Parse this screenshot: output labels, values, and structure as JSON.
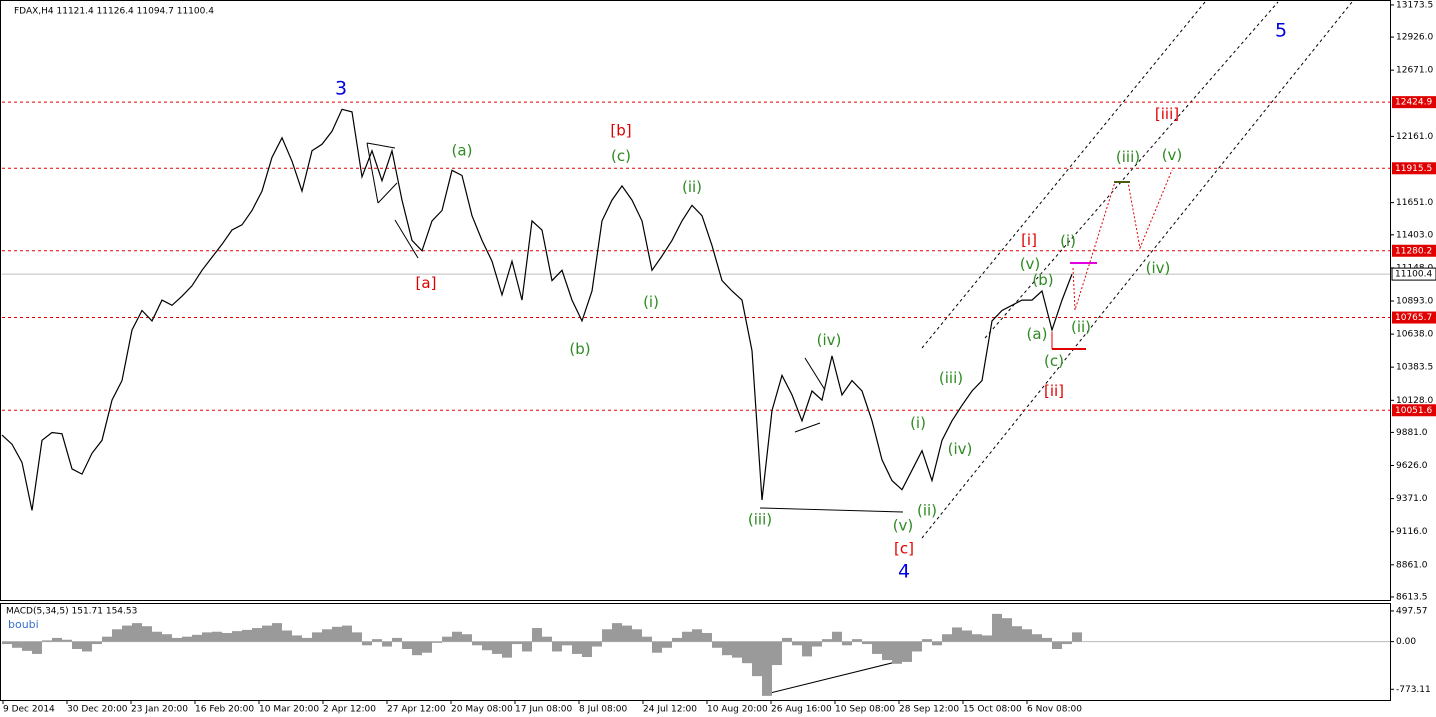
{
  "chart_data": [
    {
      "type": "line",
      "title": "FDAX,H4  11121.4 11126.4 11094.7 11100.4",
      "xlim": [
        0,
        1388
      ],
      "xticks": [
        {
          "value": 1,
          "label": "9 Dec 2014"
        },
        {
          "value": 65,
          "label": "30 Dec 20:00"
        },
        {
          "value": 129,
          "label": "23 Jan 20:00"
        },
        {
          "value": 193,
          "label": "16 Feb 20:00"
        },
        {
          "value": 257,
          "label": "10 Mar 20:00"
        },
        {
          "value": 321,
          "label": "2 Apr 12:00"
        },
        {
          "value": 385,
          "label": "27 Apr 12:00"
        },
        {
          "value": 449,
          "label": "20 May 08:00"
        },
        {
          "value": 513,
          "label": "17 Jun 08:00"
        },
        {
          "value": 577,
          "label": "8 Jul 08:00"
        },
        {
          "value": 641,
          "label": "24 Jul 12:00"
        },
        {
          "value": 705,
          "label": "10 Aug 20:00"
        },
        {
          "value": 769,
          "label": "26 Aug 16:00"
        },
        {
          "value": 833,
          "label": "10 Sep 08:00"
        },
        {
          "value": 897,
          "label": "28 Sep 12:00"
        },
        {
          "value": 961,
          "label": "15 Oct 08:00"
        },
        {
          "value": 1025,
          "label": "6 Nov 08:00"
        }
      ],
      "ylim": [
        8590,
        13204
      ],
      "yticks": [
        13173.5,
        {
          "value": 12926,
          "label": "12926.0"
        },
        {
          "value": 12671,
          "label": "12671.0"
        },
        {
          "value": 12161,
          "label": "12161.0"
        },
        {
          "value": 11651,
          "label": "11651.0"
        },
        {
          "value": 11403,
          "label": "11403.0"
        },
        {
          "value": 11148,
          "label": "11148.0"
        },
        {
          "value": 10893,
          "label": "10893.0"
        },
        {
          "value": 10638,
          "label": "10638.0"
        },
        10383.5,
        {
          "value": 10128,
          "label": "10128.0"
        },
        {
          "value": 9881,
          "label": "9881.0"
        },
        {
          "value": 9626,
          "label": "9626.0"
        },
        {
          "value": 9371,
          "label": "9371.0"
        },
        {
          "value": 9116,
          "label": "9116.0"
        },
        {
          "value": 8861,
          "label": "8861.0"
        },
        8613.5
      ],
      "series": [
        {
          "name": "FDAX",
          "color": "#000000",
          "x": [
            0,
            10,
            20,
            30,
            40,
            50,
            60,
            70,
            80,
            90,
            100,
            110,
            120,
            130,
            140,
            150,
            160,
            170,
            180,
            190,
            200,
            210,
            220,
            230,
            240,
            250,
            260,
            270,
            280,
            290,
            300,
            310,
            320,
            330,
            340,
            350,
            360,
            370,
            380,
            390,
            400,
            410,
            420,
            430,
            440,
            450,
            460,
            470,
            480,
            490,
            500,
            510,
            520,
            530,
            540,
            550,
            560,
            570,
            580,
            590,
            600,
            610,
            620,
            630,
            640,
            650,
            660,
            670,
            680,
            690,
            700,
            710,
            720,
            730,
            740,
            750,
            760,
            770,
            780,
            790,
            800,
            810,
            820,
            830,
            840,
            850,
            860,
            870,
            880,
            890,
            900,
            910,
            920,
            930,
            940,
            950,
            960,
            970,
            980,
            990,
            1000,
            1010,
            1020,
            1030,
            1040,
            1050,
            1060,
            1070
          ],
          "values": [
            9860,
            9790,
            9650,
            9280,
            9820,
            9880,
            9870,
            9600,
            9560,
            9720,
            9820,
            10130,
            10280,
            10670,
            10820,
            10740,
            10900,
            10860,
            10930,
            11010,
            11130,
            11230,
            11330,
            11440,
            11480,
            11590,
            11740,
            12000,
            12150,
            11970,
            11740,
            12050,
            12100,
            12200,
            12370,
            12350,
            11850,
            12050,
            11820,
            12050,
            11670,
            11360,
            11280,
            11510,
            11590,
            11900,
            11860,
            11550,
            11360,
            11200,
            10940,
            11200,
            10900,
            11510,
            11440,
            11050,
            11130,
            10900,
            10740,
            10970,
            11510,
            11670,
            11780,
            11670,
            11510,
            11130,
            11240,
            11360,
            11510,
            11630,
            11550,
            11320,
            11050,
            10970,
            10900,
            10510,
            9360,
            10050,
            10320,
            10170,
            9970,
            10200,
            10130,
            10470,
            10170,
            10280,
            10200,
            9970,
            9670,
            9510,
            9440,
            9590,
            9740,
            9510,
            9820,
            9970,
            10090,
            10200,
            10280,
            10740,
            10820,
            10860,
            10900,
            10900,
            10970,
            10670,
            10900,
            11100
          ]
        }
      ],
      "levels": [
        {
          "value": 12424.9,
          "color": "#e00000"
        },
        {
          "value": 11915.5,
          "color": "#e00000"
        },
        {
          "value": 11280.2,
          "color": "#e00000"
        },
        {
          "value": 10765.7,
          "color": "#e00000"
        },
        {
          "value": 10051.6,
          "color": "#e00000"
        }
      ],
      "current_price": {
        "value": 11100.4,
        "color": "#999999"
      },
      "annotations": [
        {
          "text": "3",
          "color": "#0000e0",
          "x": 339,
          "y": 12527
        },
        {
          "text": "[a]",
          "color": "#e00000",
          "x": 424,
          "y": 11028
        },
        {
          "text": "(a)",
          "color": "#2e8b22",
          "x": 460,
          "y": 12050
        },
        {
          "text": "[b]",
          "color": "#e00000",
          "x": 619,
          "y": 12204
        },
        {
          "text": "(c)",
          "color": "#2e8b22",
          "x": 619,
          "y": 12005
        },
        {
          "text": "(ii)",
          "color": "#2e8b22",
          "x": 690,
          "y": 11766
        },
        {
          "text": "(b)",
          "color": "#2e8b22",
          "x": 578,
          "y": 10520
        },
        {
          "text": "(i)",
          "color": "#2e8b22",
          "x": 649,
          "y": 10882
        },
        {
          "text": "(iv)",
          "color": "#2e8b22",
          "x": 827,
          "y": 10590
        },
        {
          "text": "(iii)",
          "color": "#2e8b22",
          "x": 758,
          "y": 9205
        },
        {
          "text": "(v)",
          "color": "#2e8b22",
          "x": 901,
          "y": 9160
        },
        {
          "text": "[c]",
          "color": "#e00000",
          "x": 902,
          "y": 8982
        },
        {
          "text": "4",
          "color": "#0000e0",
          "x": 902,
          "y": 8806
        },
        {
          "text": "(ii)",
          "color": "#2e8b22",
          "x": 925,
          "y": 9275
        },
        {
          "text": "(i)",
          "color": "#2e8b22",
          "x": 916,
          "y": 9951
        },
        {
          "text": "(iii)",
          "color": "#2e8b22",
          "x": 949,
          "y": 10297
        },
        {
          "text": "(iv)",
          "color": "#2e8b22",
          "x": 958,
          "y": 9751
        },
        {
          "text": "(v)",
          "color": "#2e8b22",
          "x": 1028,
          "y": 11174
        },
        {
          "text": "[i]",
          "color": "#e00000",
          "x": 1027,
          "y": 11359
        },
        {
          "text": "(b)",
          "color": "#2e8b22",
          "x": 1041,
          "y": 11051
        },
        {
          "text": "(a)",
          "color": "#2e8b22",
          "x": 1035,
          "y": 10636
        },
        {
          "text": "(c)",
          "color": "#2e8b22",
          "x": 1052,
          "y": 10428
        },
        {
          "text": "[ii]",
          "color": "#e00000",
          "x": 1052,
          "y": 10197
        },
        {
          "text": "(i)",
          "color": "#2e8b22",
          "x": 1066,
          "y": 11351
        },
        {
          "text": "(ii)",
          "color": "#2e8b22",
          "x": 1079,
          "y": 10690
        },
        {
          "text": "(iii)",
          "color": "#2e8b22",
          "x": 1126,
          "y": 11997
        },
        {
          "text": "[iii]",
          "color": "#e00000",
          "x": 1165,
          "y": 12328
        },
        {
          "text": "(v)",
          "color": "#2e8b22",
          "x": 1170,
          "y": 12012
        },
        {
          "text": "(iv)",
          "color": "#2e8b22",
          "x": 1156,
          "y": 11143
        },
        {
          "text": "5",
          "color": "#0000e0",
          "x": 1279,
          "y": 12973
        }
      ]
    },
    {
      "type": "bar",
      "title": "MACD(5,34,5) 151.71 154.53",
      "subtitle": "boubi",
      "xlim": [
        0,
        1388
      ],
      "ylim": [
        -947,
        610
      ],
      "yticks": [
        497.57,
        {
          "value": 0,
          "label": "0.00"
        },
        -773.11
      ],
      "series": [
        {
          "name": "MACD",
          "color": "#9a9a9a",
          "x": [
            0,
            10,
            20,
            30,
            40,
            50,
            60,
            70,
            80,
            90,
            100,
            110,
            120,
            130,
            140,
            150,
            160,
            170,
            180,
            190,
            200,
            210,
            220,
            230,
            240,
            250,
            260,
            270,
            280,
            290,
            300,
            310,
            320,
            330,
            340,
            350,
            360,
            370,
            380,
            390,
            400,
            410,
            420,
            430,
            440,
            450,
            460,
            470,
            480,
            490,
            500,
            510,
            520,
            530,
            540,
            550,
            560,
            570,
            580,
            590,
            600,
            610,
            620,
            630,
            640,
            650,
            660,
            670,
            680,
            690,
            700,
            710,
            720,
            730,
            740,
            750,
            760,
            770,
            780,
            790,
            800,
            810,
            820,
            830,
            840,
            850,
            860,
            870,
            880,
            890,
            900,
            910,
            920,
            930,
            940,
            950,
            960,
            970,
            980,
            990,
            1000,
            1010,
            1020,
            1030,
            1040,
            1050,
            1060,
            1070
          ],
          "values": [
            -40,
            -100,
            -150,
            -200,
            20,
            60,
            30,
            -120,
            -160,
            -40,
            80,
            200,
            260,
            300,
            250,
            160,
            120,
            60,
            80,
            110,
            150,
            160,
            140,
            170,
            190,
            220,
            260,
            300,
            180,
            100,
            60,
            150,
            200,
            240,
            260,
            150,
            -60,
            40,
            -80,
            60,
            -120,
            -220,
            -180,
            -20,
            80,
            160,
            120,
            -60,
            -140,
            -200,
            -260,
            -40,
            -160,
            220,
            80,
            -160,
            -60,
            -200,
            -250,
            -80,
            200,
            300,
            260,
            200,
            80,
            -180,
            -100,
            60,
            160,
            200,
            140,
            -100,
            -220,
            -260,
            -350,
            -560,
            -880,
            -380,
            60,
            -60,
            -240,
            -80,
            40,
            160,
            -60,
            40,
            -40,
            -200,
            -300,
            -360,
            -330,
            -160,
            40,
            -60,
            120,
            230,
            180,
            120,
            100,
            450,
            380,
            250,
            200,
            120,
            60,
            -120,
            -40,
            150
          ]
        }
      ]
    }
  ]
}
